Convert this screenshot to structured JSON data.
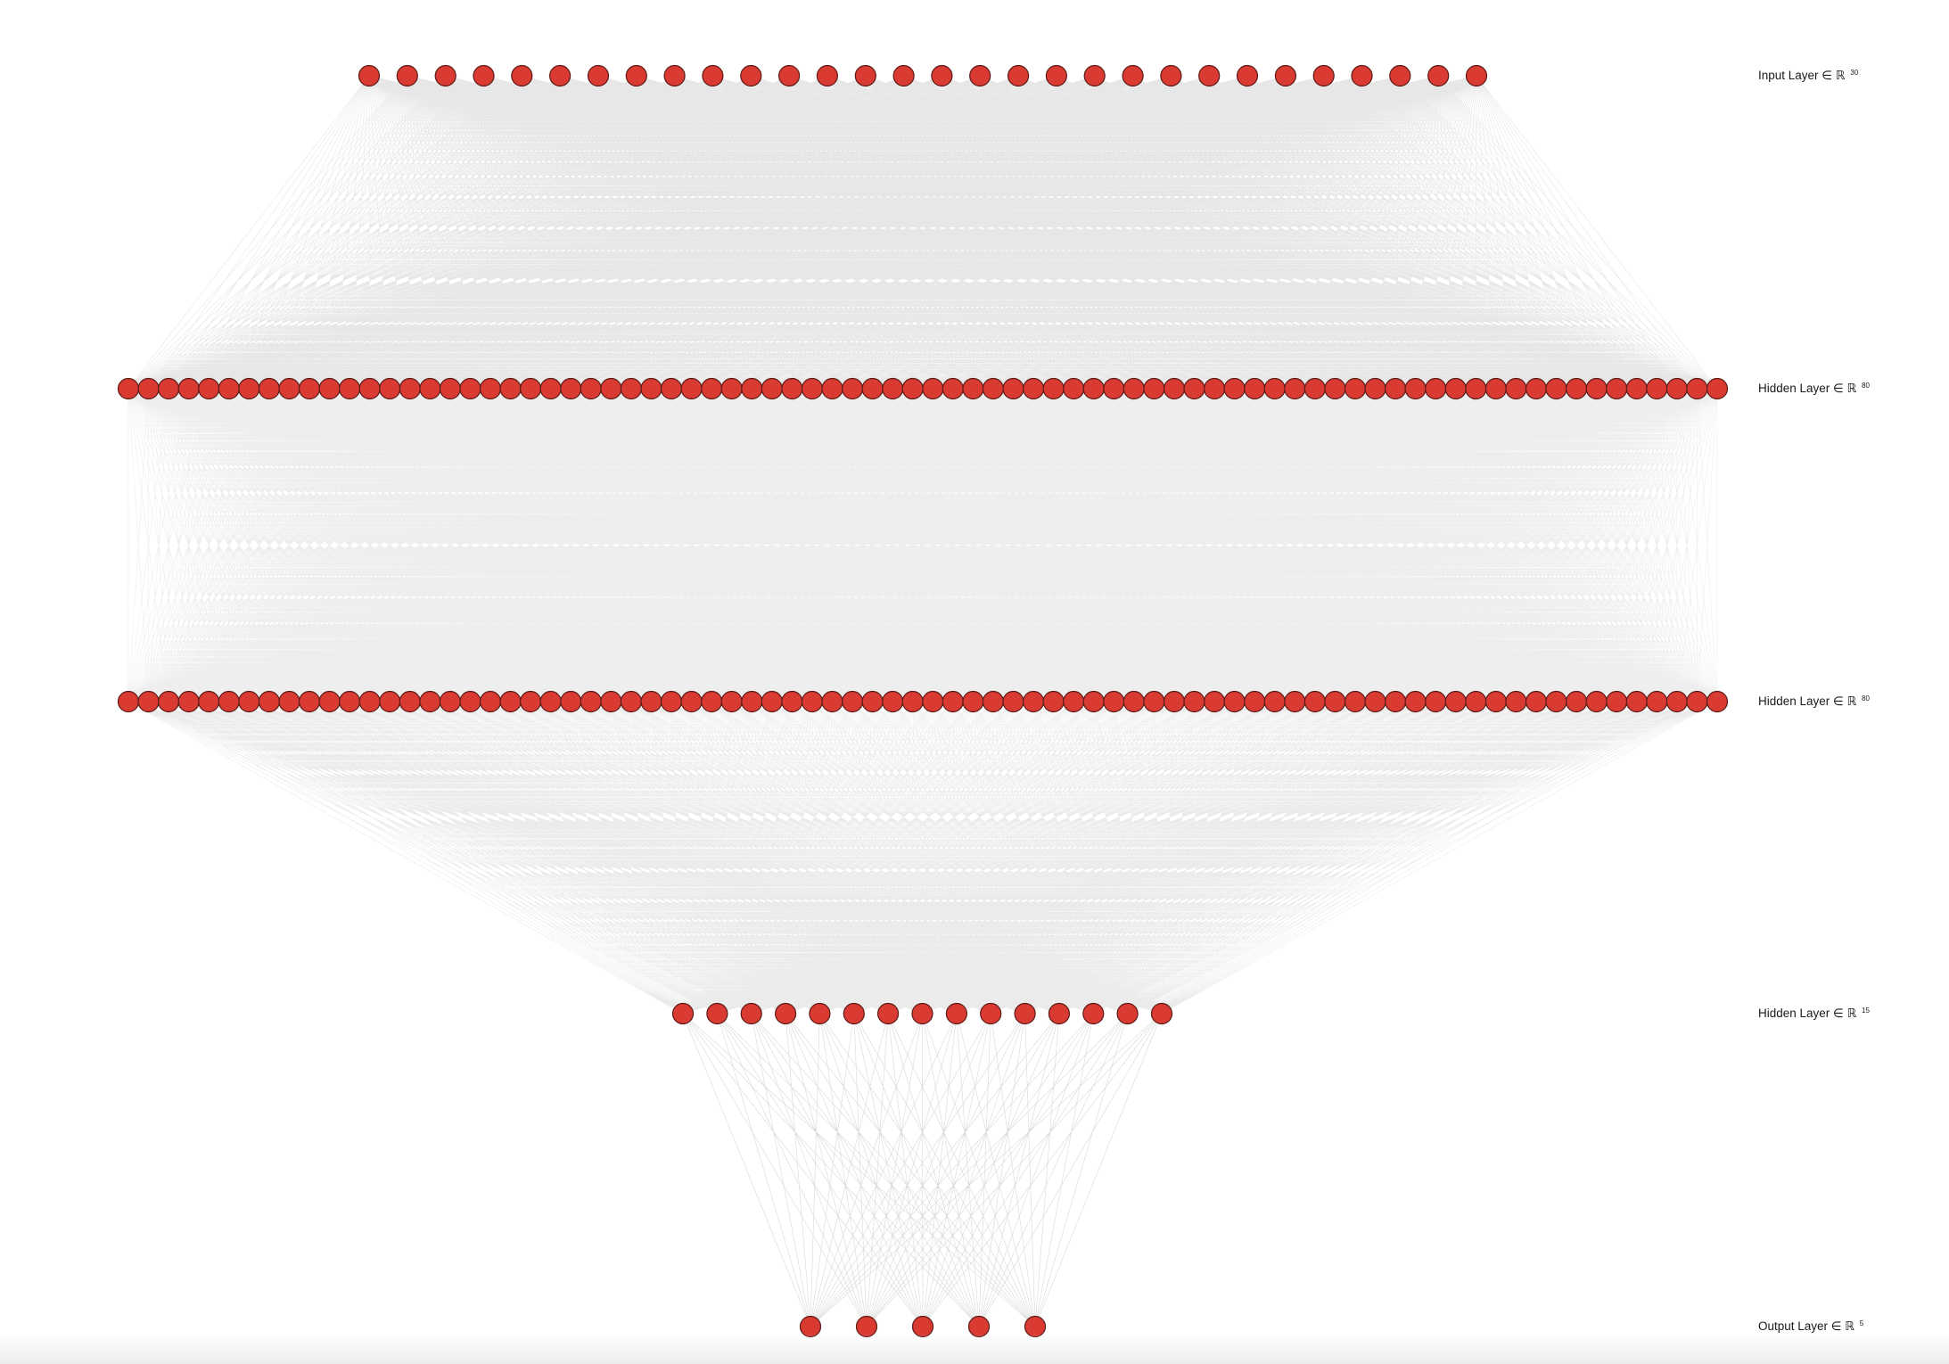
{
  "diagram": {
    "type": "fully-connected neural network",
    "node_color": "#d93a32",
    "node_stroke": "#5a1a16",
    "edge_color": "#3c3c3c",
    "background": "#ffffff",
    "layers": [
      {
        "id": "input",
        "label": "Input Layer ∈ ℝ",
        "dim": "30",
        "nodes": 30
      },
      {
        "id": "hidden1",
        "label": "Hidden Layer ∈ ℝ",
        "dim": "80",
        "nodes": 80
      },
      {
        "id": "hidden2",
        "label": "Hidden Layer ∈ ℝ",
        "dim": "80",
        "nodes": 80
      },
      {
        "id": "hidden3",
        "label": "Hidden Layer ∈ ℝ",
        "dim": "15",
        "nodes": 15
      },
      {
        "id": "output",
        "label": "Output Layer ∈ ℝ",
        "dim": "5",
        "nodes": 5
      }
    ]
  }
}
